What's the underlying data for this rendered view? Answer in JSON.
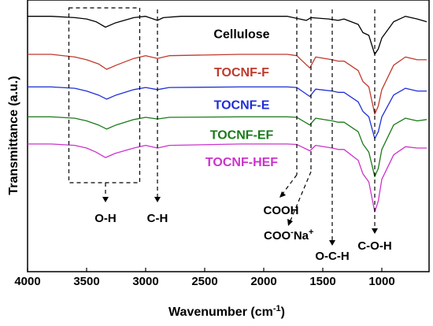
{
  "chart_data": {
    "type": "line",
    "xlabel_main": "Wavenumber (cm",
    "xlabel_sup": "-1",
    "xlabel_end": ")",
    "ylabel": "Transmittance (a.u.)",
    "xlim": [
      4000,
      600
    ],
    "x_reversed": true,
    "xticks": [
      4000,
      3500,
      3000,
      2500,
      2000,
      1500,
      1000
    ],
    "grid": false,
    "series": [
      {
        "name": "Cellulose",
        "color": "#000000",
        "baseline": 0.94,
        "points": [
          [
            4000,
            0.94
          ],
          [
            3800,
            0.94
          ],
          [
            3600,
            0.935
          ],
          [
            3500,
            0.93
          ],
          [
            3420,
            0.92
          ],
          [
            3340,
            0.9
          ],
          [
            3260,
            0.915
          ],
          [
            3100,
            0.935
          ],
          [
            3000,
            0.94
          ],
          [
            2900,
            0.925
          ],
          [
            2850,
            0.935
          ],
          [
            2700,
            0.94
          ],
          [
            2200,
            0.94
          ],
          [
            1800,
            0.94
          ],
          [
            1640,
            0.925
          ],
          [
            1600,
            0.935
          ],
          [
            1450,
            0.93
          ],
          [
            1370,
            0.925
          ],
          [
            1320,
            0.93
          ],
          [
            1200,
            0.91
          ],
          [
            1160,
            0.88
          ],
          [
            1110,
            0.87
          ],
          [
            1060,
            0.8
          ],
          [
            1030,
            0.82
          ],
          [
            1000,
            0.86
          ],
          [
            900,
            0.92
          ],
          [
            800,
            0.94
          ],
          [
            700,
            0.93
          ],
          [
            620,
            0.92
          ]
        ]
      },
      {
        "name": "TOCNF-F",
        "color": "#c0392b",
        "baseline": 0.8,
        "points": [
          [
            4000,
            0.8
          ],
          [
            3800,
            0.8
          ],
          [
            3600,
            0.79
          ],
          [
            3500,
            0.78
          ],
          [
            3400,
            0.765
          ],
          [
            3330,
            0.745
          ],
          [
            3250,
            0.76
          ],
          [
            3100,
            0.785
          ],
          [
            3000,
            0.795
          ],
          [
            2900,
            0.785
          ],
          [
            2800,
            0.795
          ],
          [
            2200,
            0.8
          ],
          [
            1800,
            0.8
          ],
          [
            1720,
            0.795
          ],
          [
            1610,
            0.75
          ],
          [
            1560,
            0.79
          ],
          [
            1420,
            0.78
          ],
          [
            1370,
            0.775
          ],
          [
            1320,
            0.775
          ],
          [
            1200,
            0.74
          ],
          [
            1160,
            0.7
          ],
          [
            1110,
            0.68
          ],
          [
            1060,
            0.58
          ],
          [
            1030,
            0.61
          ],
          [
            1000,
            0.67
          ],
          [
            900,
            0.76
          ],
          [
            800,
            0.79
          ],
          [
            700,
            0.78
          ],
          [
            620,
            0.78
          ]
        ]
      },
      {
        "name": "TOCNF-E",
        "color": "#1f2fd6",
        "baseline": 0.68,
        "points": [
          [
            4000,
            0.68
          ],
          [
            3800,
            0.68
          ],
          [
            3600,
            0.675
          ],
          [
            3500,
            0.665
          ],
          [
            3400,
            0.65
          ],
          [
            3330,
            0.635
          ],
          [
            3250,
            0.65
          ],
          [
            3100,
            0.67
          ],
          [
            3000,
            0.678
          ],
          [
            2900,
            0.67
          ],
          [
            2800,
            0.678
          ],
          [
            2200,
            0.68
          ],
          [
            1800,
            0.68
          ],
          [
            1720,
            0.678
          ],
          [
            1610,
            0.645
          ],
          [
            1560,
            0.672
          ],
          [
            1420,
            0.665
          ],
          [
            1370,
            0.66
          ],
          [
            1320,
            0.66
          ],
          [
            1200,
            0.625
          ],
          [
            1160,
            0.59
          ],
          [
            1110,
            0.57
          ],
          [
            1060,
            0.49
          ],
          [
            1030,
            0.515
          ],
          [
            1000,
            0.57
          ],
          [
            900,
            0.65
          ],
          [
            800,
            0.675
          ],
          [
            700,
            0.665
          ],
          [
            620,
            0.665
          ]
        ]
      },
      {
        "name": "TOCNF-EF",
        "color": "#1a7a1a",
        "baseline": 0.57,
        "points": [
          [
            4000,
            0.57
          ],
          [
            3800,
            0.57
          ],
          [
            3600,
            0.565
          ],
          [
            3500,
            0.555
          ],
          [
            3400,
            0.54
          ],
          [
            3330,
            0.525
          ],
          [
            3250,
            0.54
          ],
          [
            3100,
            0.56
          ],
          [
            3000,
            0.568
          ],
          [
            2900,
            0.562
          ],
          [
            2800,
            0.568
          ],
          [
            2200,
            0.57
          ],
          [
            1800,
            0.57
          ],
          [
            1720,
            0.568
          ],
          [
            1610,
            0.54
          ],
          [
            1560,
            0.565
          ],
          [
            1420,
            0.555
          ],
          [
            1370,
            0.55
          ],
          [
            1320,
            0.55
          ],
          [
            1200,
            0.515
          ],
          [
            1160,
            0.47
          ],
          [
            1110,
            0.44
          ],
          [
            1060,
            0.35
          ],
          [
            1030,
            0.38
          ],
          [
            1000,
            0.45
          ],
          [
            900,
            0.54
          ],
          [
            800,
            0.565
          ],
          [
            700,
            0.555
          ],
          [
            620,
            0.56
          ]
        ]
      },
      {
        "name": "TOCNF-HEF",
        "color": "#cc33cc",
        "baseline": 0.47,
        "points": [
          [
            4000,
            0.47
          ],
          [
            3800,
            0.47
          ],
          [
            3600,
            0.465
          ],
          [
            3500,
            0.455
          ],
          [
            3420,
            0.44
          ],
          [
            3340,
            0.42
          ],
          [
            3260,
            0.435
          ],
          [
            3100,
            0.455
          ],
          [
            3000,
            0.465
          ],
          [
            2900,
            0.455
          ],
          [
            2800,
            0.465
          ],
          [
            2200,
            0.47
          ],
          [
            1800,
            0.47
          ],
          [
            1720,
            0.468
          ],
          [
            1610,
            0.445
          ],
          [
            1560,
            0.465
          ],
          [
            1420,
            0.455
          ],
          [
            1370,
            0.45
          ],
          [
            1320,
            0.45
          ],
          [
            1200,
            0.41
          ],
          [
            1160,
            0.36
          ],
          [
            1110,
            0.33
          ],
          [
            1060,
            0.22
          ],
          [
            1030,
            0.26
          ],
          [
            1000,
            0.34
          ],
          [
            900,
            0.43
          ],
          [
            800,
            0.46
          ],
          [
            700,
            0.455
          ],
          [
            620,
            0.455
          ]
        ]
      }
    ],
    "annotations": [
      {
        "text": "O-H",
        "wavenumber": 3340
      },
      {
        "text": "C-H",
        "wavenumber": 2900
      },
      {
        "text": "COOH",
        "wavenumber": 1720
      },
      {
        "text": "COO",
        "sup": "-",
        "tail": "Na",
        "sup2": "+",
        "wavenumber": 1600
      },
      {
        "text": "O-C-H",
        "wavenumber": 1420
      },
      {
        "text": "C-O-H",
        "wavenumber": 1060
      }
    ],
    "region_box": {
      "from": 3650,
      "to": 3050
    }
  }
}
